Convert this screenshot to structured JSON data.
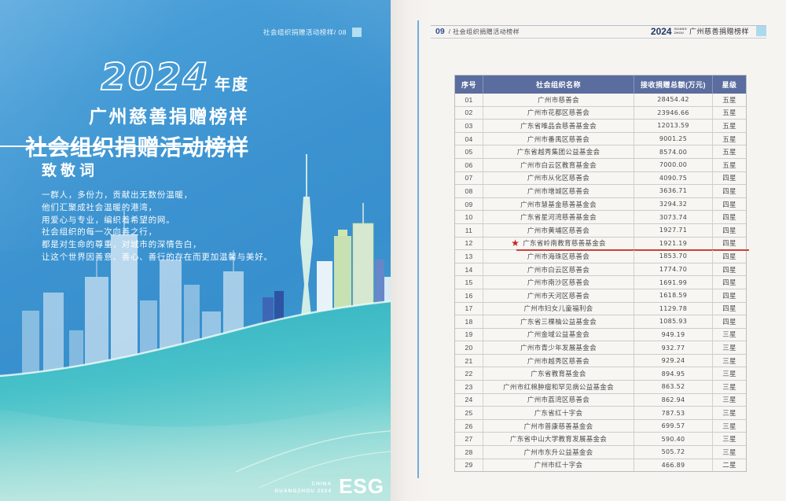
{
  "poster": {
    "page_label": "社会组织捐赠活动榜样/ 08",
    "year": "2024",
    "year_suffix": "年度",
    "subtitle": "广州慈善捐赠榜样",
    "title": "社会组织捐赠活动榜样",
    "tribute_heading": "致敬词",
    "tribute_lines": [
      "一群人，多份力，贡献出无数份温暖，",
      "他们汇聚成社会温暖的港湾，",
      "用爱心与专业，编织着希望的网。",
      "社会组织的每一次向善之行，",
      "都是对生命的尊重，对城市的深情告白，",
      "让这个世界因善意、善心、善行的存在而更加温馨与美好。"
    ],
    "footer": {
      "line1": "CHINA",
      "line2": "GUANGZHOU 2024",
      "esg": "ESG"
    }
  },
  "page": {
    "header_left_num": "09",
    "header_left_title": "/ 社会组织捐赠活动榜样",
    "header_right_year": "2024",
    "header_right_small_top": "GUANG",
    "header_right_small_bottom": "ZHOU",
    "header_right_title": "广州慈善捐赠榜样"
  },
  "table": {
    "columns": [
      "序号",
      "社会组织名称",
      "接收捐赠总额(万元)",
      "星级"
    ],
    "star_icon": "★",
    "rows": [
      {
        "no": "01",
        "name": "广州市慈善会",
        "amount": "28454.42",
        "stars": "五星"
      },
      {
        "no": "02",
        "name": "广州市花都区慈善会",
        "amount": "23946.66",
        "stars": "五星"
      },
      {
        "no": "03",
        "name": "广东省唯品会慈善基金会",
        "amount": "12013.59",
        "stars": "五星"
      },
      {
        "no": "04",
        "name": "广州市番禺区慈善会",
        "amount": "9001.25",
        "stars": "五星"
      },
      {
        "no": "05",
        "name": "广东省越秀集团公益基金会",
        "amount": "8574.00",
        "stars": "五星"
      },
      {
        "no": "06",
        "name": "广州市白云区教育基金会",
        "amount": "7000.00",
        "stars": "五星"
      },
      {
        "no": "07",
        "name": "广州市从化区慈善会",
        "amount": "4090.75",
        "stars": "四星"
      },
      {
        "no": "08",
        "name": "广州市增城区慈善会",
        "amount": "3636.71",
        "stars": "四星"
      },
      {
        "no": "09",
        "name": "广州市慧基金慈善基金会",
        "amount": "3294.32",
        "stars": "四星"
      },
      {
        "no": "10",
        "name": "广东省星河湾慈善基金会",
        "amount": "3073.74",
        "stars": "四星"
      },
      {
        "no": "11",
        "name": "广州市黄埔区慈善会",
        "amount": "1927.71",
        "stars": "四星"
      },
      {
        "no": "12",
        "name": "广东省岭南教育慈善基金会",
        "amount": "1921.19",
        "stars": "四星",
        "highlight": true
      },
      {
        "no": "13",
        "name": "广州市海珠区慈善会",
        "amount": "1853.70",
        "stars": "四星"
      },
      {
        "no": "14",
        "name": "广州市白云区慈善会",
        "amount": "1774.70",
        "stars": "四星"
      },
      {
        "no": "15",
        "name": "广州市南沙区慈善会",
        "amount": "1691.99",
        "stars": "四星"
      },
      {
        "no": "16",
        "name": "广州市天河区慈善会",
        "amount": "1618.59",
        "stars": "四星"
      },
      {
        "no": "17",
        "name": "广州市妇女儿童福利会",
        "amount": "1129.78",
        "stars": "四星"
      },
      {
        "no": "18",
        "name": "广东省三棵柚公益基金会",
        "amount": "1085.93",
        "stars": "四星"
      },
      {
        "no": "19",
        "name": "广州金域公益基金会",
        "amount": "949.19",
        "stars": "三星"
      },
      {
        "no": "20",
        "name": "广州市青少年发展基金会",
        "amount": "932.77",
        "stars": "三星"
      },
      {
        "no": "21",
        "name": "广州市越秀区慈善会",
        "amount": "929.24",
        "stars": "三星"
      },
      {
        "no": "22",
        "name": "广东省教育基金会",
        "amount": "894.95",
        "stars": "三星"
      },
      {
        "no": "23",
        "name": "广州市红棉肿瘤和罕见病公益基金会",
        "amount": "863.52",
        "stars": "三星"
      },
      {
        "no": "24",
        "name": "广州市荔湾区慈善会",
        "amount": "862.94",
        "stars": "三星"
      },
      {
        "no": "25",
        "name": "广东省红十字会",
        "amount": "787.53",
        "stars": "三星"
      },
      {
        "no": "26",
        "name": "广州市普康慈善基金会",
        "amount": "699.57",
        "stars": "三星"
      },
      {
        "no": "27",
        "name": "广东省中山大学教育发展基金会",
        "amount": "590.40",
        "stars": "三星"
      },
      {
        "no": "28",
        "name": "广州市东升公益基金会",
        "amount": "505.72",
        "stars": "三星"
      },
      {
        "no": "29",
        "name": "广州市红十字会",
        "amount": "466.89",
        "stars": "二星"
      }
    ]
  },
  "colors": {
    "poster_blue": "#3c93d0",
    "wave_teal": "#33b5c4",
    "table_header_bg": "#5a6d9e",
    "highlight_red": "#c8251d",
    "accent_line_blue": "#4a93d4"
  }
}
